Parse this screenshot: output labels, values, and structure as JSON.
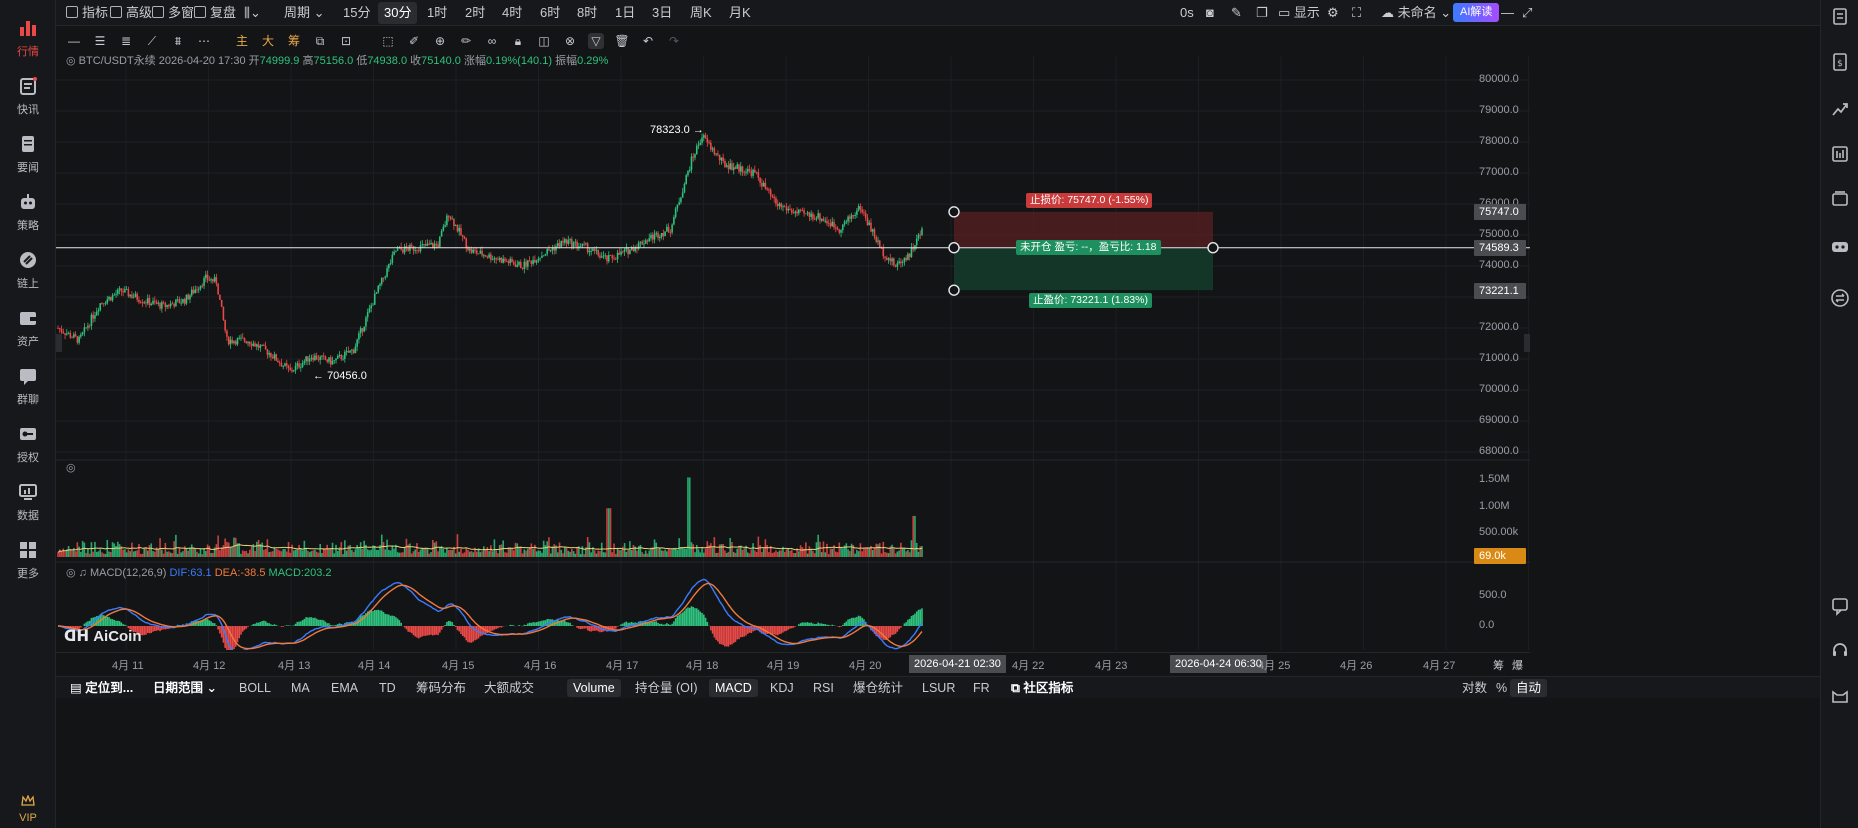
{
  "leftnav": {
    "items": [
      {
        "label": "行情",
        "icon": "bar-chart-icon",
        "active": true
      },
      {
        "label": "快讯",
        "icon": "news-flash-icon"
      },
      {
        "label": "要闻",
        "icon": "document-icon"
      },
      {
        "label": "策略",
        "icon": "robot-icon"
      },
      {
        "label": "链上",
        "icon": "chain-icon"
      },
      {
        "label": "资产",
        "icon": "wallet-icon"
      },
      {
        "label": "群聊",
        "icon": "chat-icon"
      },
      {
        "label": "授权",
        "icon": "key-icon"
      },
      {
        "label": "数据",
        "icon": "monitor-icon"
      },
      {
        "label": "更多",
        "icon": "grid-icon"
      }
    ],
    "vip_label": "VIP"
  },
  "topbar": {
    "indicator": "指标",
    "advanced": "高级",
    "multi_window": "多窗",
    "replay": "复盘",
    "period": "周期",
    "intervals": [
      "15分",
      "30分",
      "1时",
      "2时",
      "4时",
      "6时",
      "8时",
      "1日",
      "3日",
      "周K",
      "月K"
    ],
    "selected_interval": "30分",
    "countdown": "0s",
    "display": "显示",
    "layout_name": "未命名",
    "ai_label": "AI解读"
  },
  "drawbar": {
    "text_tools": [
      "主",
      "大",
      "筹"
    ]
  },
  "info": {
    "symbol": "BTC/USDT永续",
    "datetime": "2026-04-20 17:30",
    "open_label": "开",
    "open": "74999.9",
    "high_label": "高",
    "high": "75156.0",
    "low_label": "低",
    "low": "74938.0",
    "close_label": "收",
    "close": "75140.0",
    "change_label": "涨幅",
    "change": "0.19%(140.1)",
    "amp_label": "振幅",
    "amp": "0.29%"
  },
  "chart_data": {
    "type": "candlestick",
    "symbol": "BTC/USDT永续",
    "interval": "30分",
    "x_labels": [
      "4月 11",
      "4月 12",
      "4月 13",
      "4月 14",
      "4月 15",
      "4月 16",
      "4月 17",
      "4月 18",
      "4月 19",
      "4月 20",
      "4月 22",
      "4月 23",
      "4月 25",
      "4月 26",
      "4月 27"
    ],
    "y_ticks": [
      "80000.0",
      "79000.0",
      "78000.0",
      "77000.0",
      "76000.0",
      "75000.0",
      "74000.0",
      "73000.0",
      "72000.0",
      "71000.0",
      "70000.0",
      "69000.0",
      "68000.0"
    ],
    "ylim": [
      67800,
      80200
    ],
    "close_path": [
      [
        "04-10 12:00",
        72000
      ],
      [
        "04-10 18:00",
        71600
      ],
      [
        "04-11 00:00",
        72800
      ],
      [
        "04-11 06:00",
        73200
      ],
      [
        "04-11 12:00",
        72900
      ],
      [
        "04-11 18:00",
        72700
      ],
      [
        "04-12 00:00",
        72900
      ],
      [
        "04-12 06:00",
        73600
      ],
      [
        "04-12 09:00",
        73500
      ],
      [
        "04-12 12:00",
        71600
      ],
      [
        "04-12 18:00",
        71600
      ],
      [
        "04-13 00:00",
        71200
      ],
      [
        "04-13 06:00",
        70600
      ],
      [
        "04-13 12:00",
        71100
      ],
      [
        "04-13 18:00",
        70900
      ],
      [
        "04-14 00:00",
        71300
      ],
      [
        "04-14 06:00",
        73000
      ],
      [
        "04-14 12:00",
        74500
      ],
      [
        "04-14 18:00",
        74600
      ],
      [
        "04-15 00:00",
        74700
      ],
      [
        "04-15 03:00",
        75700
      ],
      [
        "04-15 09:00",
        74500
      ],
      [
        "04-15 18:00",
        74200
      ],
      [
        "04-16 00:00",
        74000
      ],
      [
        "04-16 06:00",
        74400
      ],
      [
        "04-16 12:00",
        74800
      ],
      [
        "04-16 18:00",
        74600
      ],
      [
        "04-17 00:00",
        74200
      ],
      [
        "04-17 06:00",
        74500
      ],
      [
        "04-17 12:00",
        74900
      ],
      [
        "04-17 18:00",
        75200
      ],
      [
        "04-18 00:00",
        77400
      ],
      [
        "04-18 03:00",
        78200
      ],
      [
        "04-18 09:00",
        77300
      ],
      [
        "04-18 18:00",
        77000
      ],
      [
        "04-19 00:00",
        76000
      ],
      [
        "04-19 06:00",
        75700
      ],
      [
        "04-19 12:00",
        75600
      ],
      [
        "04-19 18:00",
        75200
      ],
      [
        "04-20 00:00",
        75900
      ],
      [
        "04-20 06:00",
        74500
      ],
      [
        "04-20 10:00",
        74000
      ],
      [
        "04-20 14:00",
        74400
      ],
      [
        "04-20 17:30",
        75140
      ]
    ],
    "annotations": [
      {
        "label": "78323.0",
        "type": "high",
        "value": 78323.0
      },
      {
        "label": "70456.0",
        "type": "low",
        "value": 70456.0
      }
    ],
    "position_tool": {
      "stop_loss": 75747.0,
      "stop_loss_label": "止损价: 75747.0 (-1.55%)",
      "entry": 74589.3,
      "take_profit": 73221.1,
      "take_profit_label": "止盈价: 73221.1 (1.83%)",
      "status_label": "未开仓  盈亏: --，盈亏比: 1.18"
    },
    "current_price": "74589.3",
    "stop_tag": "75747.0",
    "tp_tag": "73221.1"
  },
  "volume": {
    "ticks": [
      "1.50M",
      "1.00M",
      "500.00k"
    ],
    "current": "69.0k"
  },
  "macd": {
    "label": "MACD(12,26,9)",
    "dif": "DIF:63.1",
    "dea": "DEA:-38.5",
    "macd": "MACD:203.2",
    "ticks": [
      "500.0",
      "0.0"
    ]
  },
  "timeaxis": {
    "cursor_tag": "2026-04-21 02:30",
    "cursor_tag2": "2026-04-24 06:30",
    "tools": [
      "筹",
      "爆"
    ]
  },
  "watermark": "AiCoin",
  "bottombar": {
    "locate": "定位到...",
    "date_range": "日期范围",
    "overlays": [
      "BOLL",
      "MA",
      "EMA",
      "TD",
      "筹码分布",
      "大额成交"
    ],
    "subcharts": [
      "Volume",
      "持仓量 (OI)",
      "MACD",
      "KDJ",
      "RSI",
      "爆仓统计",
      "LSUR",
      "FR"
    ],
    "community": "社区指标",
    "log_label": "对数",
    "pct_label": "%",
    "auto_label": "自动"
  },
  "colors": {
    "up": "#2ec27e",
    "down": "#e94a47",
    "dif": "#3b7bff",
    "dea": "#f07a3c",
    "ma": "#e8d27a"
  }
}
